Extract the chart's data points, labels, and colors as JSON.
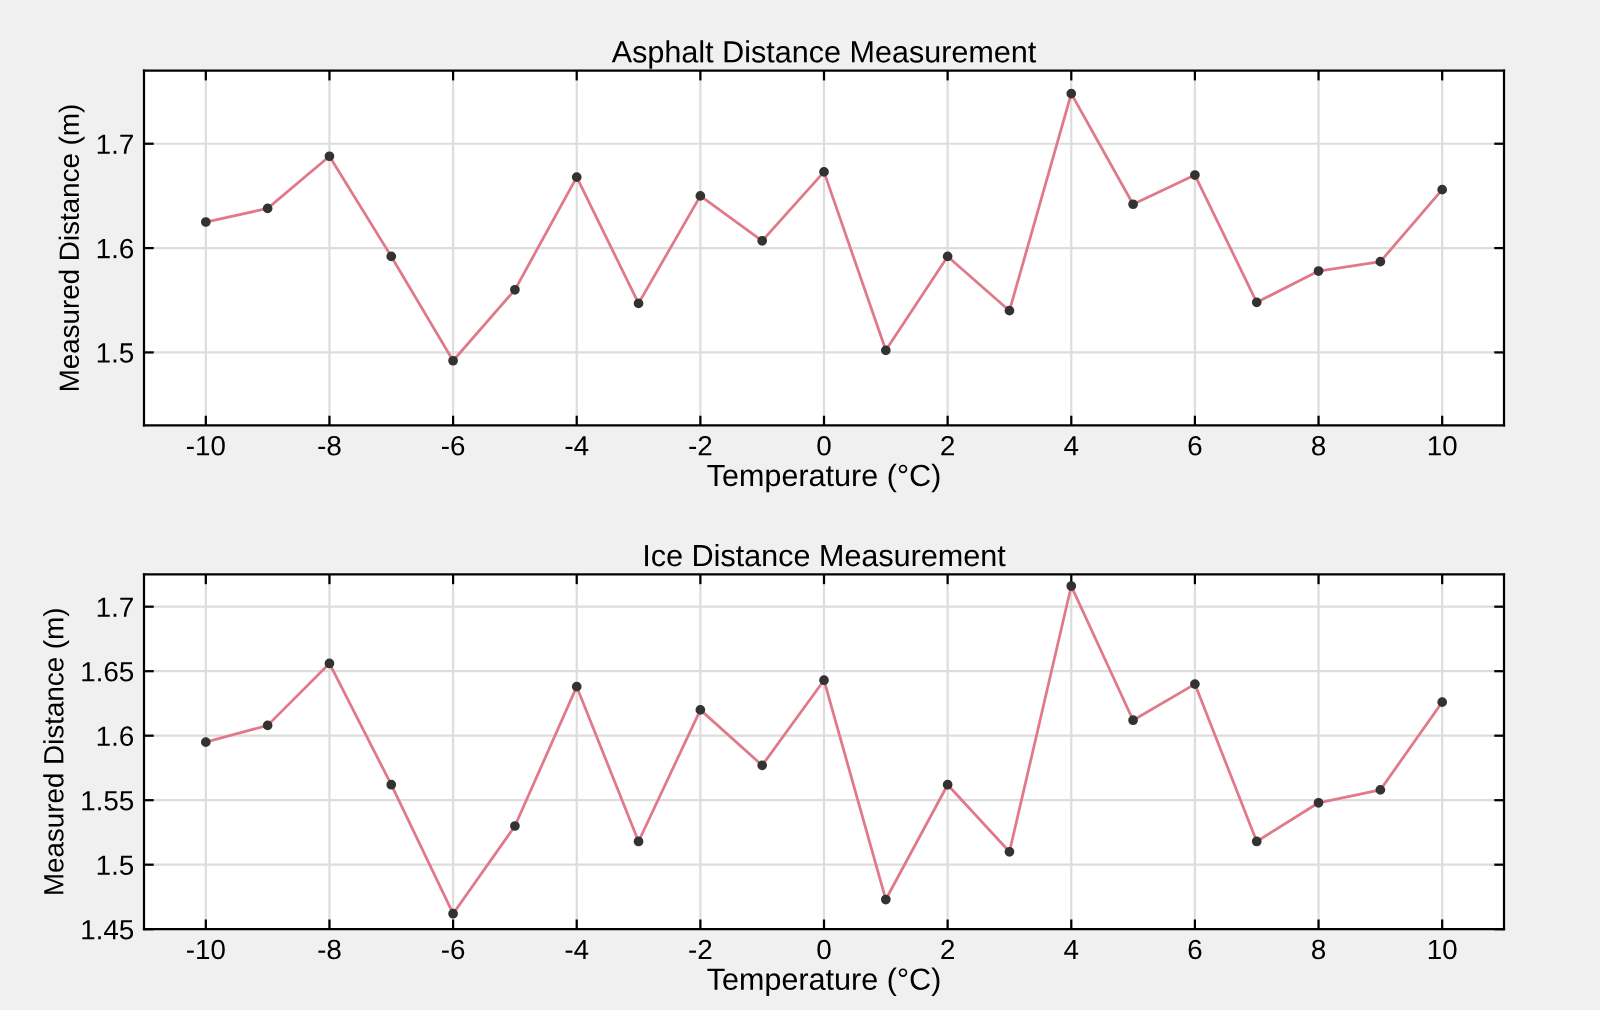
{
  "chart_data": [
    {
      "type": "line",
      "title": "Asphalt Distance Measurement",
      "xlabel": "Temperature (°C)",
      "ylabel": "Measured Distance (m)",
      "x": [
        -10,
        -9,
        -8,
        -7,
        -6,
        -5,
        -4,
        -3,
        -2,
        -1,
        0,
        1,
        2,
        3,
        4,
        5,
        6,
        7,
        8,
        9,
        10
      ],
      "series": [
        {
          "color": "#e07a8a",
          "values": [
            1.625,
            1.638,
            1.688,
            1.592,
            1.492,
            1.56,
            1.668,
            1.547,
            1.65,
            1.607,
            1.673,
            1.502,
            1.592,
            1.54,
            1.748,
            1.642,
            1.67,
            1.548,
            1.578,
            1.587,
            1.656
          ]
        }
      ],
      "xlim": [
        -11,
        11
      ],
      "xticks": [
        -10,
        -8,
        -6,
        -4,
        -2,
        0,
        2,
        4,
        6,
        8,
        10
      ],
      "ylim": [
        1.43,
        1.77
      ],
      "yticks": [
        1.5,
        1.6,
        1.7
      ],
      "grid": true,
      "marker": "circle",
      "line_style": "solid"
    },
    {
      "type": "line",
      "title": "Ice Distance Measurement",
      "xlabel": "Temperature (°C)",
      "ylabel": "Measured Distance (m)",
      "x": [
        -10,
        -9,
        -8,
        -7,
        -6,
        -5,
        -4,
        -3,
        -2,
        -1,
        0,
        1,
        2,
        3,
        4,
        5,
        6,
        7,
        8,
        9,
        10
      ],
      "series": [
        {
          "color": "#e07a8a",
          "values": [
            1.595,
            1.608,
            1.656,
            1.562,
            1.462,
            1.53,
            1.638,
            1.518,
            1.62,
            1.577,
            1.643,
            1.473,
            1.562,
            1.51,
            1.716,
            1.612,
            1.64,
            1.518,
            1.548,
            1.558,
            1.626
          ]
        }
      ],
      "xlim": [
        -11,
        11
      ],
      "xticks": [
        -10,
        -8,
        -6,
        -4,
        -2,
        0,
        2,
        4,
        6,
        8,
        10
      ],
      "ylim": [
        1.45,
        1.725
      ],
      "yticks": [
        1.45,
        1.5,
        1.55,
        1.6,
        1.65,
        1.7
      ],
      "grid": true,
      "marker": "circle",
      "line_style": "solid"
    }
  ]
}
